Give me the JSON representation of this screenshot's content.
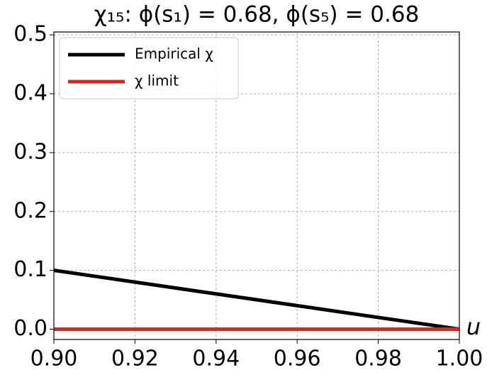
{
  "chart_data": {
    "type": "line",
    "title": "χ₁₅: ϕ(s₁) = 0.68, ϕ(s₅) = 0.68",
    "x_label": "u",
    "x": [
      0.9,
      1.0
    ],
    "series": [
      {
        "name": "Empirical χ",
        "color": "#000000",
        "values": [
          0.1,
          0.0
        ]
      },
      {
        "name": "χ limit",
        "color": "#d62728",
        "values": [
          0.0,
          0.0
        ]
      }
    ],
    "xlim": [
      0.9,
      1.0
    ],
    "ylim": [
      -0.0175,
      0.505
    ],
    "xticks": [
      {
        "value": 0.9,
        "label": "0.90"
      },
      {
        "value": 0.92,
        "label": "0.92"
      },
      {
        "value": 0.94,
        "label": "0.94"
      },
      {
        "value": 0.96,
        "label": "0.96"
      },
      {
        "value": 0.98,
        "label": "0.98"
      },
      {
        "value": 1.0,
        "label": "1.00"
      }
    ],
    "yticks": [
      {
        "value": 0,
        "label": "0.0"
      },
      0.1,
      0.2,
      0.3,
      0.4,
      0.5
    ],
    "grid": true,
    "legend": "upper left"
  }
}
